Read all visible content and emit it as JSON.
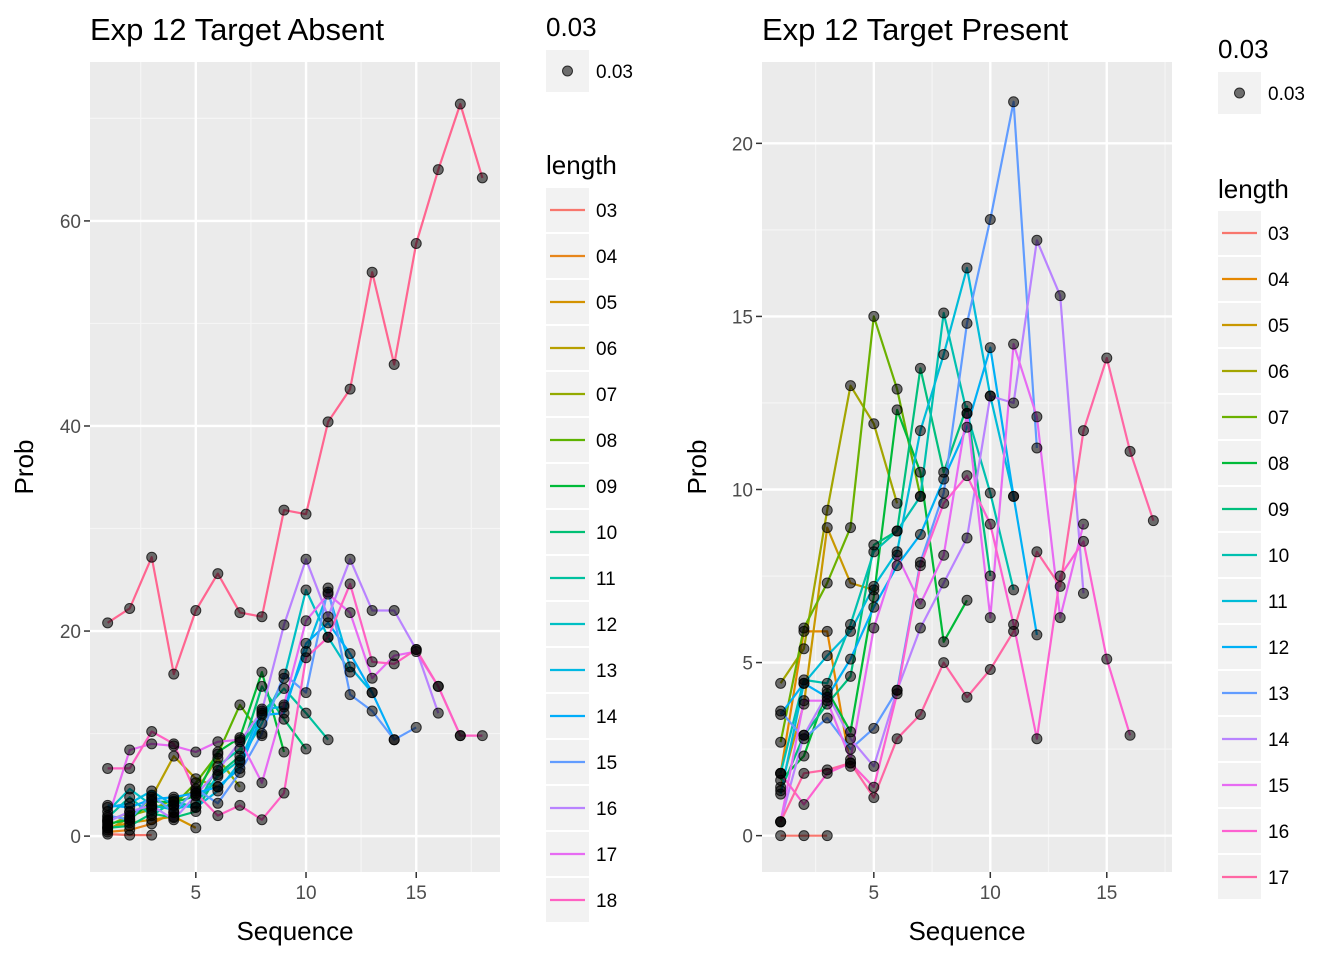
{
  "chart_data": [
    {
      "type": "line",
      "title": "Exp 12 Target Absent",
      "xlabel": "Sequence",
      "ylabel": "Prob",
      "xlim": [
        0.2,
        18.8
      ],
      "ylim": [
        -3.5,
        75.5
      ],
      "xticks": [
        5,
        10,
        15
      ],
      "yticks": [
        0,
        20,
        40,
        60
      ],
      "grid": true,
      "point_legend": {
        "title": "0.03",
        "label": "0.03"
      },
      "legend_title": "length",
      "legend_position": "right",
      "series": [
        {
          "name": "03",
          "color": "#F8766D",
          "x": [
            1,
            2,
            3
          ],
          "y": [
            0.2,
            0.1,
            0.1
          ]
        },
        {
          "name": "04",
          "color": "#E7861B",
          "x": [
            1,
            2,
            3,
            4
          ],
          "y": [
            0.4,
            0.6,
            1.2,
            2.3
          ]
        },
        {
          "name": "05",
          "color": "#D39200",
          "x": [
            1,
            2,
            3,
            4,
            5
          ],
          "y": [
            0.8,
            1.3,
            1.6,
            1.9,
            0.8
          ]
        },
        {
          "name": "06",
          "color": "#B79F00",
          "x": [
            1,
            2,
            3,
            4,
            5,
            6
          ],
          "y": [
            0.6,
            1.8,
            3.8,
            7.8,
            5.6,
            4.8
          ]
        },
        {
          "name": "07",
          "color": "#93AA00",
          "x": [
            1,
            2,
            3,
            4,
            5,
            6,
            7
          ],
          "y": [
            1.0,
            2.0,
            2.6,
            3.6,
            4.4,
            7.6,
            4.8
          ]
        },
        {
          "name": "08",
          "color": "#5EB300",
          "x": [
            1,
            2,
            3,
            4,
            5,
            6,
            7,
            8
          ],
          "y": [
            1.5,
            2.3,
            2.8,
            3.0,
            5.2,
            8.0,
            12.8,
            9.8
          ]
        },
        {
          "name": "09",
          "color": "#00BA38",
          "x": [
            1,
            2,
            3,
            4,
            5,
            6,
            7,
            8,
            9
          ],
          "y": [
            1.2,
            1.6,
            3.4,
            3.3,
            3.9,
            8.2,
            9.6,
            16.0,
            8.2
          ]
        },
        {
          "name": "10",
          "color": "#00BF74",
          "x": [
            1,
            2,
            3,
            4,
            5,
            6,
            7,
            8,
            9,
            10
          ],
          "y": [
            0.8,
            1.0,
            2.2,
            1.8,
            2.4,
            6.0,
            7.8,
            14.6,
            11.4,
            8.5
          ]
        },
        {
          "name": "11",
          "color": "#00C19F",
          "x": [
            1,
            2,
            3,
            4,
            5,
            6,
            7,
            8,
            9,
            10,
            11
          ],
          "y": [
            1.8,
            3.8,
            2.0,
            3.4,
            2.8,
            6.8,
            8.5,
            12.0,
            14.4,
            12.0,
            9.4
          ]
        },
        {
          "name": "12",
          "color": "#00BFC4",
          "x": [
            1,
            2,
            3,
            4,
            5,
            6,
            7,
            8,
            9,
            10,
            11,
            12
          ],
          "y": [
            2.4,
            4.6,
            3.0,
            2.6,
            3.2,
            5.8,
            7.4,
            11.0,
            15.4,
            24.0,
            19.4,
            16.0
          ]
        },
        {
          "name": "13",
          "color": "#00B9E3",
          "x": [
            1,
            2,
            3,
            4,
            5,
            6,
            7,
            8,
            9,
            10,
            11,
            12,
            13
          ],
          "y": [
            2.8,
            3.2,
            4.4,
            3.0,
            2.8,
            4.4,
            7.2,
            12.4,
            12.6,
            18.0,
            23.8,
            16.5,
            14.0
          ]
        },
        {
          "name": "14",
          "color": "#00ADFA",
          "x": [
            1,
            2,
            3,
            4,
            5,
            6,
            7,
            8,
            9,
            10,
            11,
            12,
            13,
            14
          ],
          "y": [
            3.0,
            2.8,
            3.6,
            3.8,
            4.2,
            4.8,
            6.6,
            11.8,
            12.0,
            18.8,
            20.8,
            17.8,
            14.0,
            9.4
          ]
        },
        {
          "name": "15",
          "color": "#619CFF",
          "x": [
            1,
            2,
            3,
            4,
            5,
            6,
            7,
            8,
            9,
            10,
            11,
            12,
            13,
            14,
            15
          ],
          "y": [
            2.0,
            1.6,
            4.0,
            2.3,
            4.6,
            3.2,
            6.2,
            10.0,
            15.8,
            14.0,
            24.2,
            13.8,
            12.2,
            9.4,
            10.6
          ]
        },
        {
          "name": "16",
          "color": "#B983FF",
          "x": [
            1,
            2,
            3,
            4,
            5,
            6,
            7,
            8,
            9,
            10,
            11,
            12,
            13,
            14,
            15,
            16
          ],
          "y": [
            1.4,
            2.4,
            3.0,
            1.6,
            4.0,
            6.4,
            9.2,
            12.2,
            20.6,
            27.0,
            21.4,
            27.0,
            22.0,
            22.0,
            18.2,
            12.0
          ]
        },
        {
          "name": "17",
          "color": "#E76BF3",
          "x": [
            1,
            2,
            3,
            4,
            5,
            6,
            7,
            8,
            9,
            10,
            11,
            12,
            13,
            14,
            15,
            16,
            17
          ],
          "y": [
            1.6,
            8.4,
            9.0,
            8.8,
            8.2,
            9.2,
            9.4,
            5.2,
            12.8,
            21.0,
            23.6,
            21.8,
            15.4,
            17.6,
            18.0,
            14.6,
            9.8
          ]
        },
        {
          "name": "18",
          "color": "#FF61C3",
          "x": [
            1,
            2,
            3,
            4,
            5,
            6,
            7,
            8,
            9,
            10,
            11,
            12,
            13,
            14,
            15,
            16,
            17,
            18
          ],
          "y": [
            6.6,
            6.6,
            10.2,
            9.0,
            4.2,
            2.0,
            3.0,
            1.6,
            4.2,
            17.4,
            19.4,
            24.6,
            17.0,
            16.8,
            18.2,
            14.6,
            9.8,
            9.8
          ]
        },
        {
          "name": "",
          "color": "#FF6590",
          "x": [
            1,
            2,
            3,
            4,
            5,
            6,
            7,
            8,
            9,
            10,
            11,
            12,
            13,
            14,
            15,
            16,
            17,
            18
          ],
          "y": [
            20.8,
            22.2,
            27.2,
            15.8,
            22.0,
            25.6,
            21.8,
            21.4,
            31.8,
            31.4,
            40.4,
            43.6,
            55.0,
            46.0,
            57.8,
            65.0,
            71.4,
            64.2
          ]
        }
      ]
    },
    {
      "type": "line",
      "title": "Exp 12 Target Present",
      "xlabel": "Sequence",
      "ylabel": "Prob",
      "xlim": [
        0.2,
        17.8
      ],
      "ylim": [
        -1.05,
        22.35
      ],
      "xticks": [
        5,
        10,
        15
      ],
      "yticks": [
        0,
        5,
        10,
        15,
        20
      ],
      "grid": true,
      "point_legend": {
        "title": "0.03",
        "label": "0.03"
      },
      "legend_title": "length",
      "legend_position": "right",
      "series": [
        {
          "name": "03",
          "color": "#F8766D",
          "x": [
            1,
            2,
            3
          ],
          "y": [
            0.0,
            0.0,
            0.0
          ]
        },
        {
          "name": "04",
          "color": "#E58700",
          "x": [
            1,
            2,
            3,
            4
          ],
          "y": [
            1.8,
            5.9,
            5.9,
            2.0
          ]
        },
        {
          "name": "05",
          "color": "#C99800",
          "x": [
            1,
            2,
            3,
            4,
            5
          ],
          "y": [
            1.4,
            3.8,
            8.9,
            7.3,
            7.1
          ]
        },
        {
          "name": "06",
          "color": "#A3A500",
          "x": [
            1,
            2,
            3,
            4,
            5,
            6
          ],
          "y": [
            4.4,
            5.4,
            9.4,
            13.0,
            11.9,
            9.6
          ]
        },
        {
          "name": "07",
          "color": "#6BB100",
          "x": [
            1,
            2,
            3,
            4,
            5,
            6,
            7
          ],
          "y": [
            2.7,
            6.0,
            7.3,
            8.9,
            15.0,
            12.9,
            9.8
          ]
        },
        {
          "name": "08",
          "color": "#00BA38",
          "x": [
            1,
            2,
            3,
            4,
            5,
            6,
            7,
            8,
            9
          ],
          "y": [
            1.6,
            2.3,
            4.2,
            3.0,
            6.9,
            12.3,
            10.5,
            5.6,
            6.8
          ]
        },
        {
          "name": "09",
          "color": "#00BF7D",
          "x": [
            1,
            2,
            3,
            4,
            5,
            6,
            7,
            8,
            9,
            10
          ],
          "y": [
            1.3,
            2.9,
            3.8,
            4.6,
            8.4,
            8.8,
            13.5,
            10.5,
            12.4,
            7.5
          ]
        },
        {
          "name": "10",
          "color": "#00C0AF",
          "x": [
            1,
            2,
            3,
            4,
            5,
            6,
            7,
            8,
            9,
            10,
            11
          ],
          "y": [
            1.8,
            4.5,
            4.4,
            6.1,
            8.2,
            8.8,
            9.8,
            15.1,
            12.2,
            9.9,
            7.1
          ]
        },
        {
          "name": "11",
          "color": "#00BCD8",
          "x": [
            1,
            2,
            3,
            4,
            5,
            6,
            7,
            8,
            9,
            10,
            11
          ],
          "y": [
            1.2,
            4.4,
            5.2,
            5.9,
            7.2,
            8.2,
            11.7,
            13.9,
            16.4,
            12.7,
            9.8
          ]
        },
        {
          "name": "12",
          "color": "#00B0F6",
          "x": [
            1,
            2,
            3,
            4,
            5,
            6,
            7,
            8,
            9,
            10,
            11,
            12
          ],
          "y": [
            3.5,
            4.4,
            4.0,
            5.1,
            6.6,
            7.8,
            8.7,
            10.3,
            11.8,
            14.1,
            9.8,
            5.8
          ]
        },
        {
          "name": "13",
          "color": "#619CFF",
          "x": [
            1,
            2,
            3,
            4,
            5,
            6,
            7,
            8,
            9,
            10,
            11,
            12
          ],
          "y": [
            3.6,
            2.8,
            3.4,
            2.5,
            3.1,
            4.2,
            7.9,
            9.9,
            14.8,
            17.8,
            21.2,
            11.2
          ]
        },
        {
          "name": "14",
          "color": "#B983FF",
          "x": [
            1,
            2,
            3,
            4,
            5,
            6,
            7,
            8,
            9,
            10,
            11,
            12,
            13,
            14
          ],
          "y": [
            0.4,
            2.9,
            4.1,
            2.8,
            2.0,
            4.2,
            6.0,
            7.3,
            8.6,
            12.7,
            12.5,
            17.2,
            15.6,
            7.0
          ]
        },
        {
          "name": "15",
          "color": "#E76BF3",
          "x": [
            1,
            2,
            3,
            4,
            5,
            6,
            7,
            8,
            9,
            10,
            11,
            12,
            13,
            14
          ],
          "y": [
            0.4,
            3.9,
            3.9,
            2.2,
            6.0,
            8.1,
            6.7,
            8.1,
            12.2,
            6.3,
            14.2,
            12.1,
            6.3,
            9.0
          ]
        },
        {
          "name": "16",
          "color": "#FD61D1",
          "x": [
            1,
            2,
            3,
            4,
            5,
            6,
            7,
            8,
            9,
            10,
            11,
            12,
            13,
            14,
            15,
            16
          ],
          "y": [
            1.8,
            0.9,
            1.8,
            2.1,
            1.4,
            4.1,
            7.8,
            9.6,
            10.4,
            9.0,
            6.1,
            2.8,
            7.5,
            8.5,
            5.1,
            2.9
          ]
        },
        {
          "name": "17",
          "color": "#FF67A4",
          "x": [
            1,
            2,
            3,
            4,
            5,
            6,
            7,
            8,
            9,
            10,
            11,
            12,
            13,
            14,
            15,
            16,
            17
          ],
          "y": [
            0.4,
            1.8,
            1.9,
            2.1,
            1.1,
            2.8,
            3.5,
            5.0,
            4.0,
            4.8,
            5.9,
            8.2,
            7.2,
            11.7,
            13.8,
            11.1,
            9.1
          ]
        }
      ]
    }
  ]
}
